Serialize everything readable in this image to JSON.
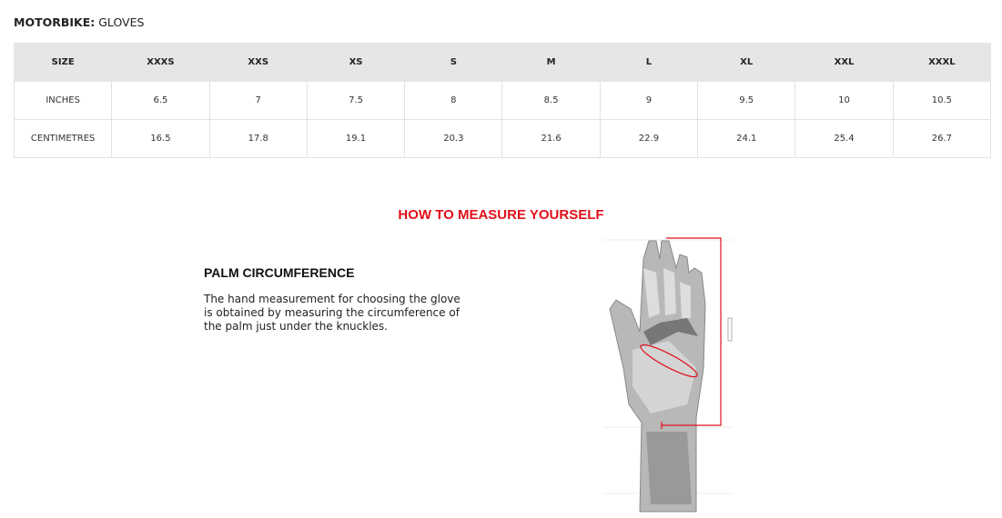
{
  "heading": {
    "category": "MOTORBIKE:",
    "product": "GLOVES"
  },
  "size_table": {
    "headers": [
      "SIZE",
      "XXXS",
      "XXS",
      "XS",
      "S",
      "M",
      "L",
      "XL",
      "XXL",
      "XXXL"
    ],
    "rows": [
      [
        "INCHES",
        "6.5",
        "7",
        "7.5",
        "8",
        "8.5",
        "9",
        "9.5",
        "10",
        "10.5"
      ],
      [
        "CENTIMETRES",
        "16.5",
        "17.8",
        "19.1",
        "20.3",
        "21.6",
        "22.9",
        "24.1",
        "25.4",
        "26.7"
      ]
    ]
  },
  "measure": {
    "title": "HOW TO MEASURE YOURSELF",
    "section_title": "PALM CIRCUMFERENCE",
    "description": "The hand measurement for choosing the glove is obtained by measuring the circumference of the palm just under the knuckles."
  },
  "colors": {
    "accent": "#e0101a",
    "header_bg": "#e6e6e6"
  },
  "illustration": "hand-measurement-diagram"
}
